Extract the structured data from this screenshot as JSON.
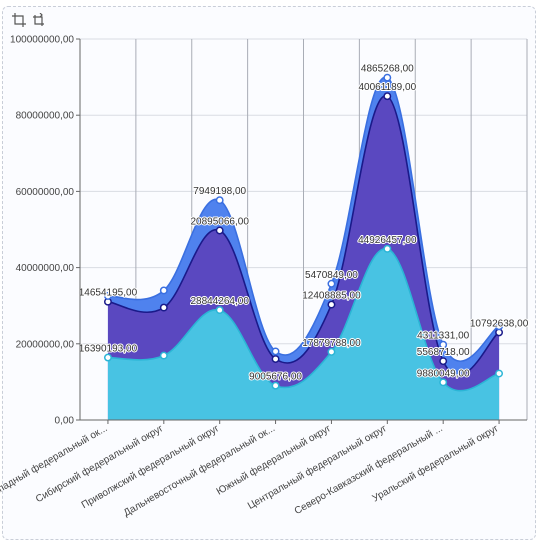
{
  "toolbar": {
    "icons": [
      "crop-icon",
      "crop-alt-icon"
    ]
  },
  "chart_data": {
    "type": "area",
    "stacked": true,
    "curve": "smooth",
    "title": "",
    "xlabel": "",
    "ylabel": "",
    "ylim": [
      0,
      100000000
    ],
    "y_ticks": [
      "0,00",
      "20000000,00",
      "40000000,00",
      "60000000,00",
      "80000000,00",
      "100000000,00"
    ],
    "grid": true,
    "legend": "none",
    "categories": [
      "Северо-Западный федеральный ок...",
      "Сибирский федеральный округ",
      "Приволжский федеральный округ",
      "Дальневосточный федеральный ок...",
      "Южный федеральный округ",
      "Центральный федеральный округ",
      "Северо-Кавказский федеральный ...",
      "Уральский федеральный округ"
    ],
    "series": [
      {
        "color": "#48c3e3",
        "line_color": "#2bb5d6",
        "values": [
          16390193,
          16900000,
          28844264,
          9005676,
          17879788,
          44926457,
          9880049,
          12200000
        ],
        "labels": [
          "16390193,00",
          "",
          "28844264,00",
          "9005676,00",
          "17879788,00",
          "44926457,00",
          "9880049,00",
          ""
        ]
      },
      {
        "color": "#5a48c0",
        "line_color": "#1a1a8a",
        "values": [
          14654195,
          12600000,
          20895066,
          7000000,
          12408885,
          40061189,
          5568718,
          10792638
        ],
        "labels": [
          "14654195,00",
          "",
          "20895066,00",
          "",
          "12408885,00",
          "40061189,00",
          "5568718,00",
          "10792638,00"
        ]
      },
      {
        "color": "#4f82ee",
        "line_color": "#3a6fe0",
        "values": [
          1500000,
          4500000,
          7949198,
          2000000,
          5470849,
          4865268,
          4311331,
          1600000
        ],
        "labels": [
          "",
          "",
          "7949198,00",
          "",
          "5470849,00",
          "4865268,00",
          "4311331,00",
          ""
        ]
      }
    ]
  }
}
